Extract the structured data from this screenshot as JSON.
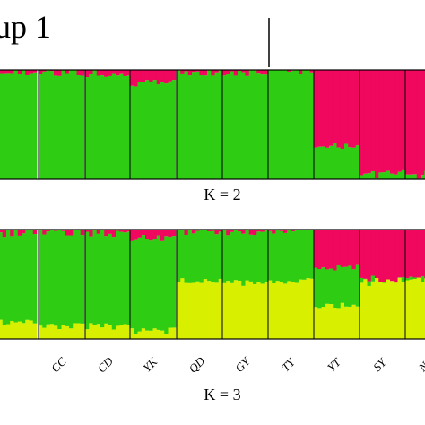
{
  "group_label": "up 1",
  "chart_data": [
    {
      "type": "bar",
      "subtype": "stacked-admixture",
      "title": "K = 2",
      "ylim": [
        0,
        1
      ],
      "populations": [
        "",
        "CC",
        "CD",
        "YK",
        "QD",
        "GY",
        "TY",
        "YT",
        "SY",
        "NJ",
        ""
      ],
      "series": [
        {
          "name": "",
          "color": "#2ecc12"
        },
        {
          "name": "",
          "color": "#f0075e"
        }
      ],
      "membership": [
        {
          "population": "",
          "values": [
            0.97,
            0.03
          ]
        },
        {
          "population": "CC",
          "values": [
            0.98,
            0.02
          ]
        },
        {
          "population": "CD",
          "values": [
            0.97,
            0.03
          ]
        },
        {
          "population": "YK",
          "values": [
            0.88,
            0.12
          ]
        },
        {
          "population": "QD",
          "values": [
            0.98,
            0.02
          ]
        },
        {
          "population": "GY",
          "values": [
            0.98,
            0.02
          ]
        },
        {
          "population": "TY",
          "values": [
            0.99,
            0.01
          ]
        },
        {
          "population": "YT",
          "values": [
            0.3,
            0.7
          ]
        },
        {
          "population": "SY",
          "values": [
            0.05,
            0.95
          ]
        },
        {
          "population": "NJ",
          "values": [
            0.04,
            0.96
          ]
        },
        {
          "population": "",
          "values": [
            0.05,
            0.95
          ]
        }
      ]
    },
    {
      "type": "bar",
      "subtype": "stacked-admixture",
      "title": "K = 3",
      "ylim": [
        0,
        1
      ],
      "populations": [
        "",
        "CC",
        "CD",
        "YK",
        "QD",
        "GY",
        "TY",
        "YT",
        "SY",
        "NJ",
        ""
      ],
      "series": [
        {
          "name": "",
          "color": "#d8f000"
        },
        {
          "name": "",
          "color": "#2ecc12"
        },
        {
          "name": "",
          "color": "#f0075e"
        }
      ],
      "membership": [
        {
          "population": "",
          "values": [
            0.15,
            0.82,
            0.03
          ]
        },
        {
          "population": "CC",
          "values": [
            0.12,
            0.86,
            0.02
          ]
        },
        {
          "population": "CD",
          "values": [
            0.12,
            0.85,
            0.03
          ]
        },
        {
          "population": "YK",
          "values": [
            0.08,
            0.84,
            0.08
          ]
        },
        {
          "population": "QD",
          "values": [
            0.53,
            0.45,
            0.02
          ]
        },
        {
          "population": "GY",
          "values": [
            0.52,
            0.46,
            0.02
          ]
        },
        {
          "population": "TY",
          "values": [
            0.53,
            0.46,
            0.01
          ]
        },
        {
          "population": "YT",
          "values": [
            0.3,
            0.35,
            0.35
          ]
        },
        {
          "population": "SY",
          "values": [
            0.53,
            0.02,
            0.45
          ]
        },
        {
          "population": "NJ",
          "values": [
            0.53,
            0.02,
            0.45
          ]
        },
        {
          "population": "",
          "values": [
            0.56,
            0.02,
            0.42
          ]
        }
      ]
    }
  ]
}
